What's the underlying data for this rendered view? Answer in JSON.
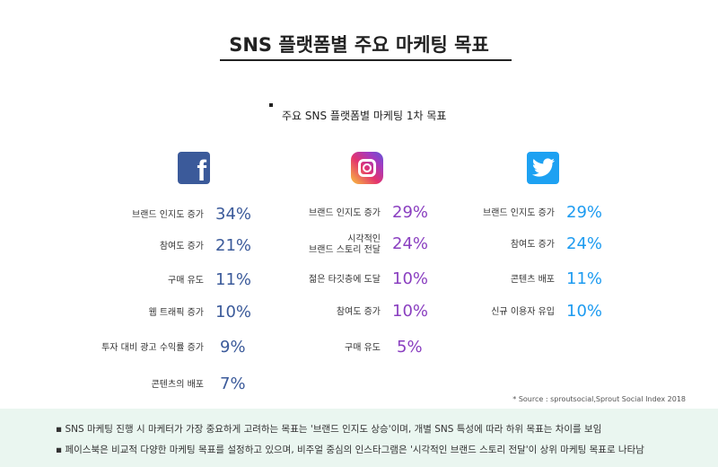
{
  "title": "SNS 플랫폼별 주요 마케팅 목표",
  "subtitle": "주요 SNS 플랫폼별 마케팅 1차 목표",
  "colors": {
    "facebook": "#3b5a9a",
    "instagram": "#8a3fc0",
    "twitter": "#1d9bf0",
    "panel": "#eaf6f0"
  },
  "platforms": [
    {
      "name": "facebook",
      "icon": "facebook-icon",
      "goals": [
        {
          "label": "브랜드 인지도 증가",
          "value": "34%"
        },
        {
          "label": "참여도 증가",
          "value": "21%"
        },
        {
          "label": "구매 유도",
          "value": "11%"
        },
        {
          "label": "웹 트래픽 증가",
          "value": "10%"
        },
        {
          "label": "투자 대비 광고 수익률 증가",
          "value": "9%"
        },
        {
          "label": "콘텐츠의 배포",
          "value": "7%"
        }
      ]
    },
    {
      "name": "instagram",
      "icon": "instagram-icon",
      "goals": [
        {
          "label": "브랜드 인지도 증가",
          "value": "29%"
        },
        {
          "label": "시각적인\n브랜드 스토리 전달",
          "value": "24%"
        },
        {
          "label": "젊은 타깃층에 도달",
          "value": "10%"
        },
        {
          "label": "참여도 증가",
          "value": "10%"
        },
        {
          "label": "구매 유도",
          "value": "5%"
        }
      ]
    },
    {
      "name": "twitter",
      "icon": "twitter-icon",
      "goals": [
        {
          "label": "브랜드 인지도 증가",
          "value": "29%"
        },
        {
          "label": "참여도 증가",
          "value": "24%"
        },
        {
          "label": "콘텐츠 배포",
          "value": "11%"
        },
        {
          "label": "신규 이용자 유입",
          "value": "10%"
        }
      ]
    }
  ],
  "source": "* Source : sproutsocial,Sprout Social Index 2018",
  "notes": [
    "SNS 마케팅 진행 시 마케터가 가장 중요하게 고려하는 목표는 '브랜드 인지도 상승'이며, 개별 SNS 특성에 따라 하위 목표는 차이를 보임",
    "페이스북은 비교적 다양한 마케팅 목표를 설정하고 있으며, 비주얼 중심의 인스타그램은 '시각적인 브랜드 스토리 전달'이 상위 마케팅 목표로 나타남"
  ]
}
